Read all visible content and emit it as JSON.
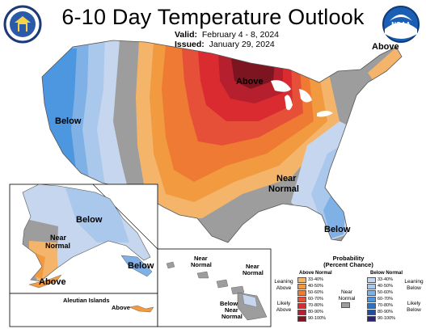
{
  "header": {
    "title": "6-10 Day Temperature Outlook",
    "valid_label": "Valid:",
    "valid_value": "February 4 - 8, 2024",
    "issued_label": "Issued:",
    "issued_value": "January 29, 2024"
  },
  "logos": {
    "left": "doc-seal-icon",
    "right": "noaa-logo-icon",
    "noaa_text": "NOAA"
  },
  "map_labels": {
    "above_midwest": "Above",
    "above_maine": "Above",
    "below_west": "Below",
    "near_normal_south": "Near\nNormal",
    "near_normal_line1": "Near",
    "near_normal_line2": "Normal",
    "below_florida": "Below"
  },
  "alaska_labels": {
    "below": "Below",
    "near1": "Near",
    "near2": "Normal",
    "above": "Above",
    "below_se": "Below",
    "aleutian_title": "Aleutian Islands",
    "aleutian_above": "Above"
  },
  "hawaii_labels": {
    "near_a1": "Near",
    "near_a2": "Normal",
    "near_b1": "Near",
    "near_b2": "Normal",
    "below": "Below",
    "near_c1": "Near",
    "near_c2": "Normal"
  },
  "legend": {
    "title_line1": "Probability",
    "title_line2": "(Percent Chance)",
    "above_normal": "Above Normal",
    "below_normal": "Below Normal",
    "leaning_above": "Leaning\nAbove",
    "likely_above": "Likely\nAbove",
    "near_normal": "Near\nNormal",
    "leaning_below": "Leaning\nBelow",
    "likely_below": "Likely\nBelow",
    "above_bins": [
      "33-40%",
      "40-50%",
      "50-60%",
      "60-70%",
      "70-80%",
      "80-90%",
      "90-100%"
    ],
    "below_bins": [
      "33-40%",
      "40-50%",
      "50-60%",
      "60-70%",
      "70-80%",
      "80-90%",
      "90-100%"
    ],
    "above_colors": [
      "#f4b56b",
      "#f29a3f",
      "#ee7a33",
      "#e65038",
      "#d92b30",
      "#b61f2d",
      "#7d1521"
    ],
    "below_colors": [
      "#c6d6ee",
      "#a9c8ec",
      "#7fb1e6",
      "#4c97df",
      "#2a74c3",
      "#1f4ea0",
      "#2b2571"
    ],
    "near_color": "#9d9d9d"
  }
}
